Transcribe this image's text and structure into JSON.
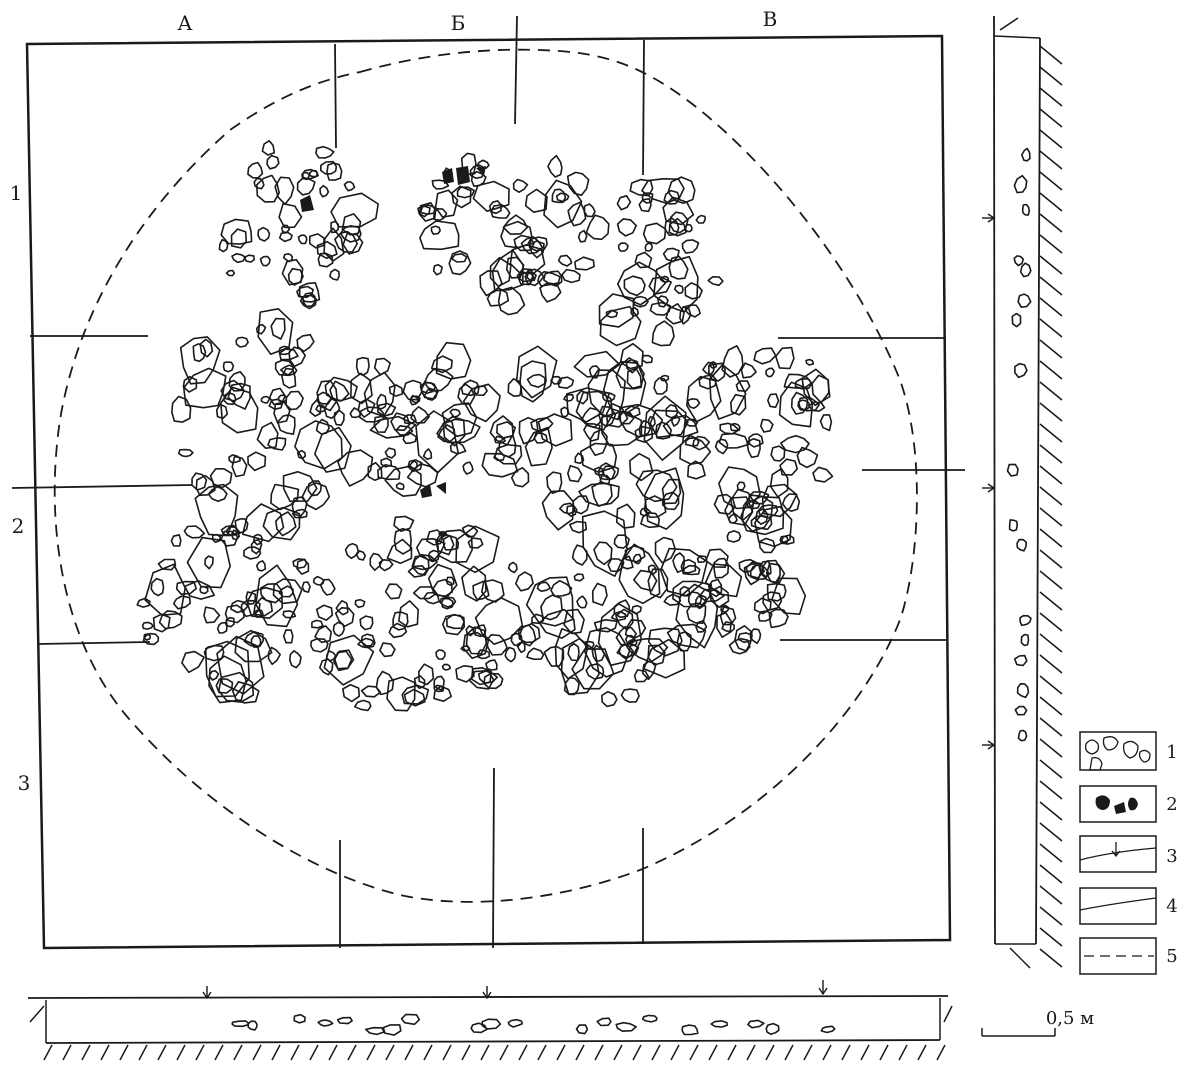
{
  "column_labels": [
    "А",
    "Б",
    "В"
  ],
  "row_labels": [
    "1",
    "2",
    "3"
  ],
  "legend": {
    "items": [
      {
        "number": "1",
        "symbol": "stone-outlines"
      },
      {
        "number": "2",
        "symbol": "filled-fragments"
      },
      {
        "number": "3",
        "symbol": "level-arrow-line"
      },
      {
        "number": "4",
        "symbol": "solid-line"
      },
      {
        "number": "5",
        "symbol": "dashed-line"
      }
    ]
  },
  "scale_bar": {
    "label": "0,5 м"
  },
  "colors": {
    "ink": "#1a1a1a",
    "background": "#ffffff"
  }
}
